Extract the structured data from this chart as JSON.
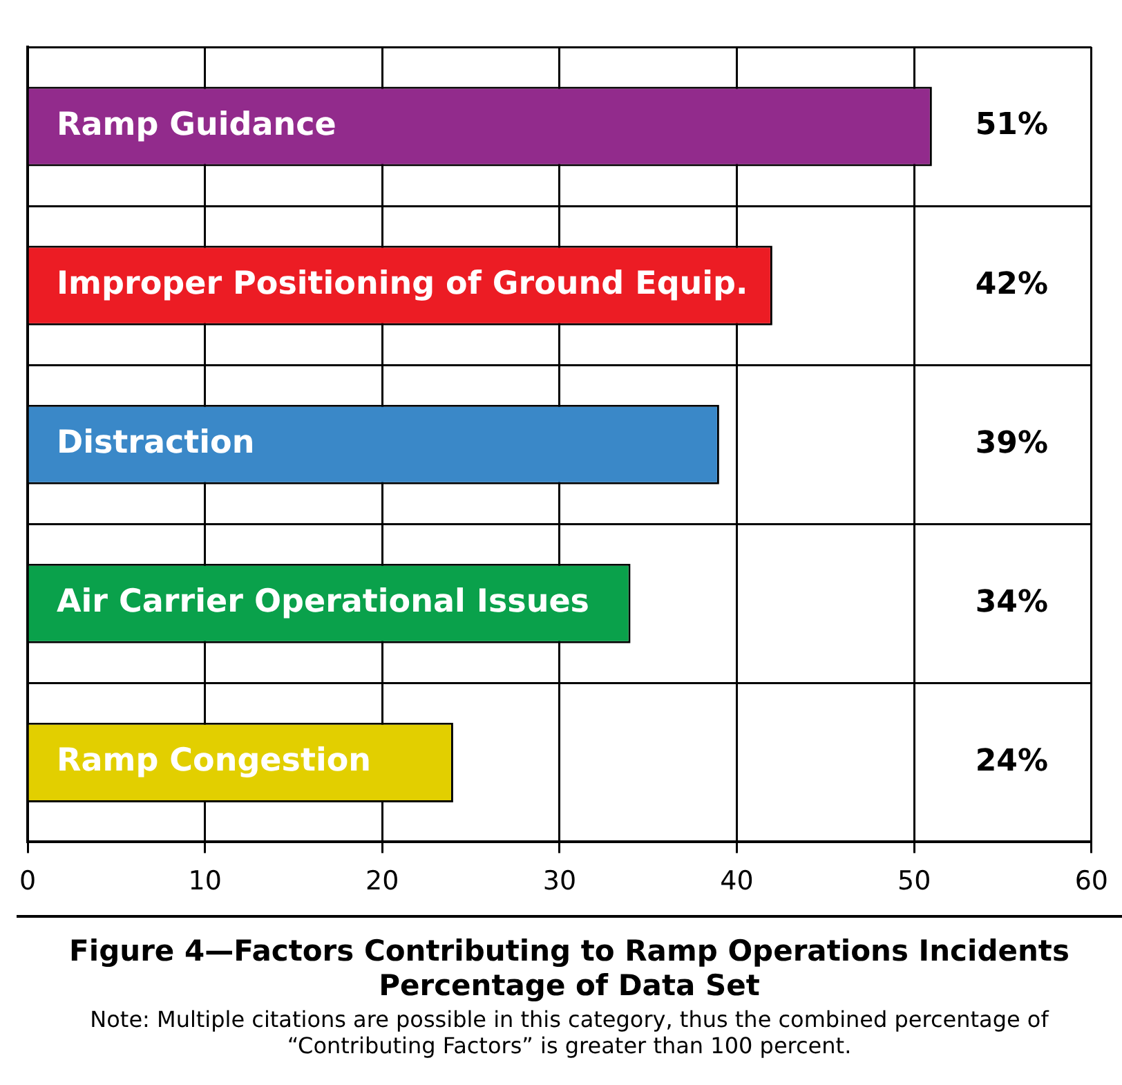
{
  "chart_data": {
    "type": "bar",
    "orientation": "horizontal",
    "title": "Figure 4—Factors Contributing to Ramp Operations Incidents",
    "subtitle": "Percentage of Data Set",
    "categories": [
      "Ramp Guidance",
      "Improper Positioning of Ground Equip.",
      "Distraction",
      "Air Carrier Operational Issues",
      "Ramp Congestion"
    ],
    "values": [
      51,
      42,
      39,
      34,
      24
    ],
    "colors": [
      "#922b8c",
      "#ec1c24",
      "#3a88c8",
      "#0aa14b",
      "#e2cf00"
    ],
    "value_labels": [
      "51%",
      "42%",
      "39%",
      "34%",
      "24%"
    ],
    "xlim": [
      0,
      60
    ],
    "xticks": [
      0,
      10,
      20,
      30,
      40,
      50,
      60
    ],
    "grid": true,
    "tick_labels": "x",
    "annotations": [
      "Note: Multiple citations are possible in this category, thus the combined percentage of “Contributing Factors” is greater than 100 percent."
    ]
  }
}
